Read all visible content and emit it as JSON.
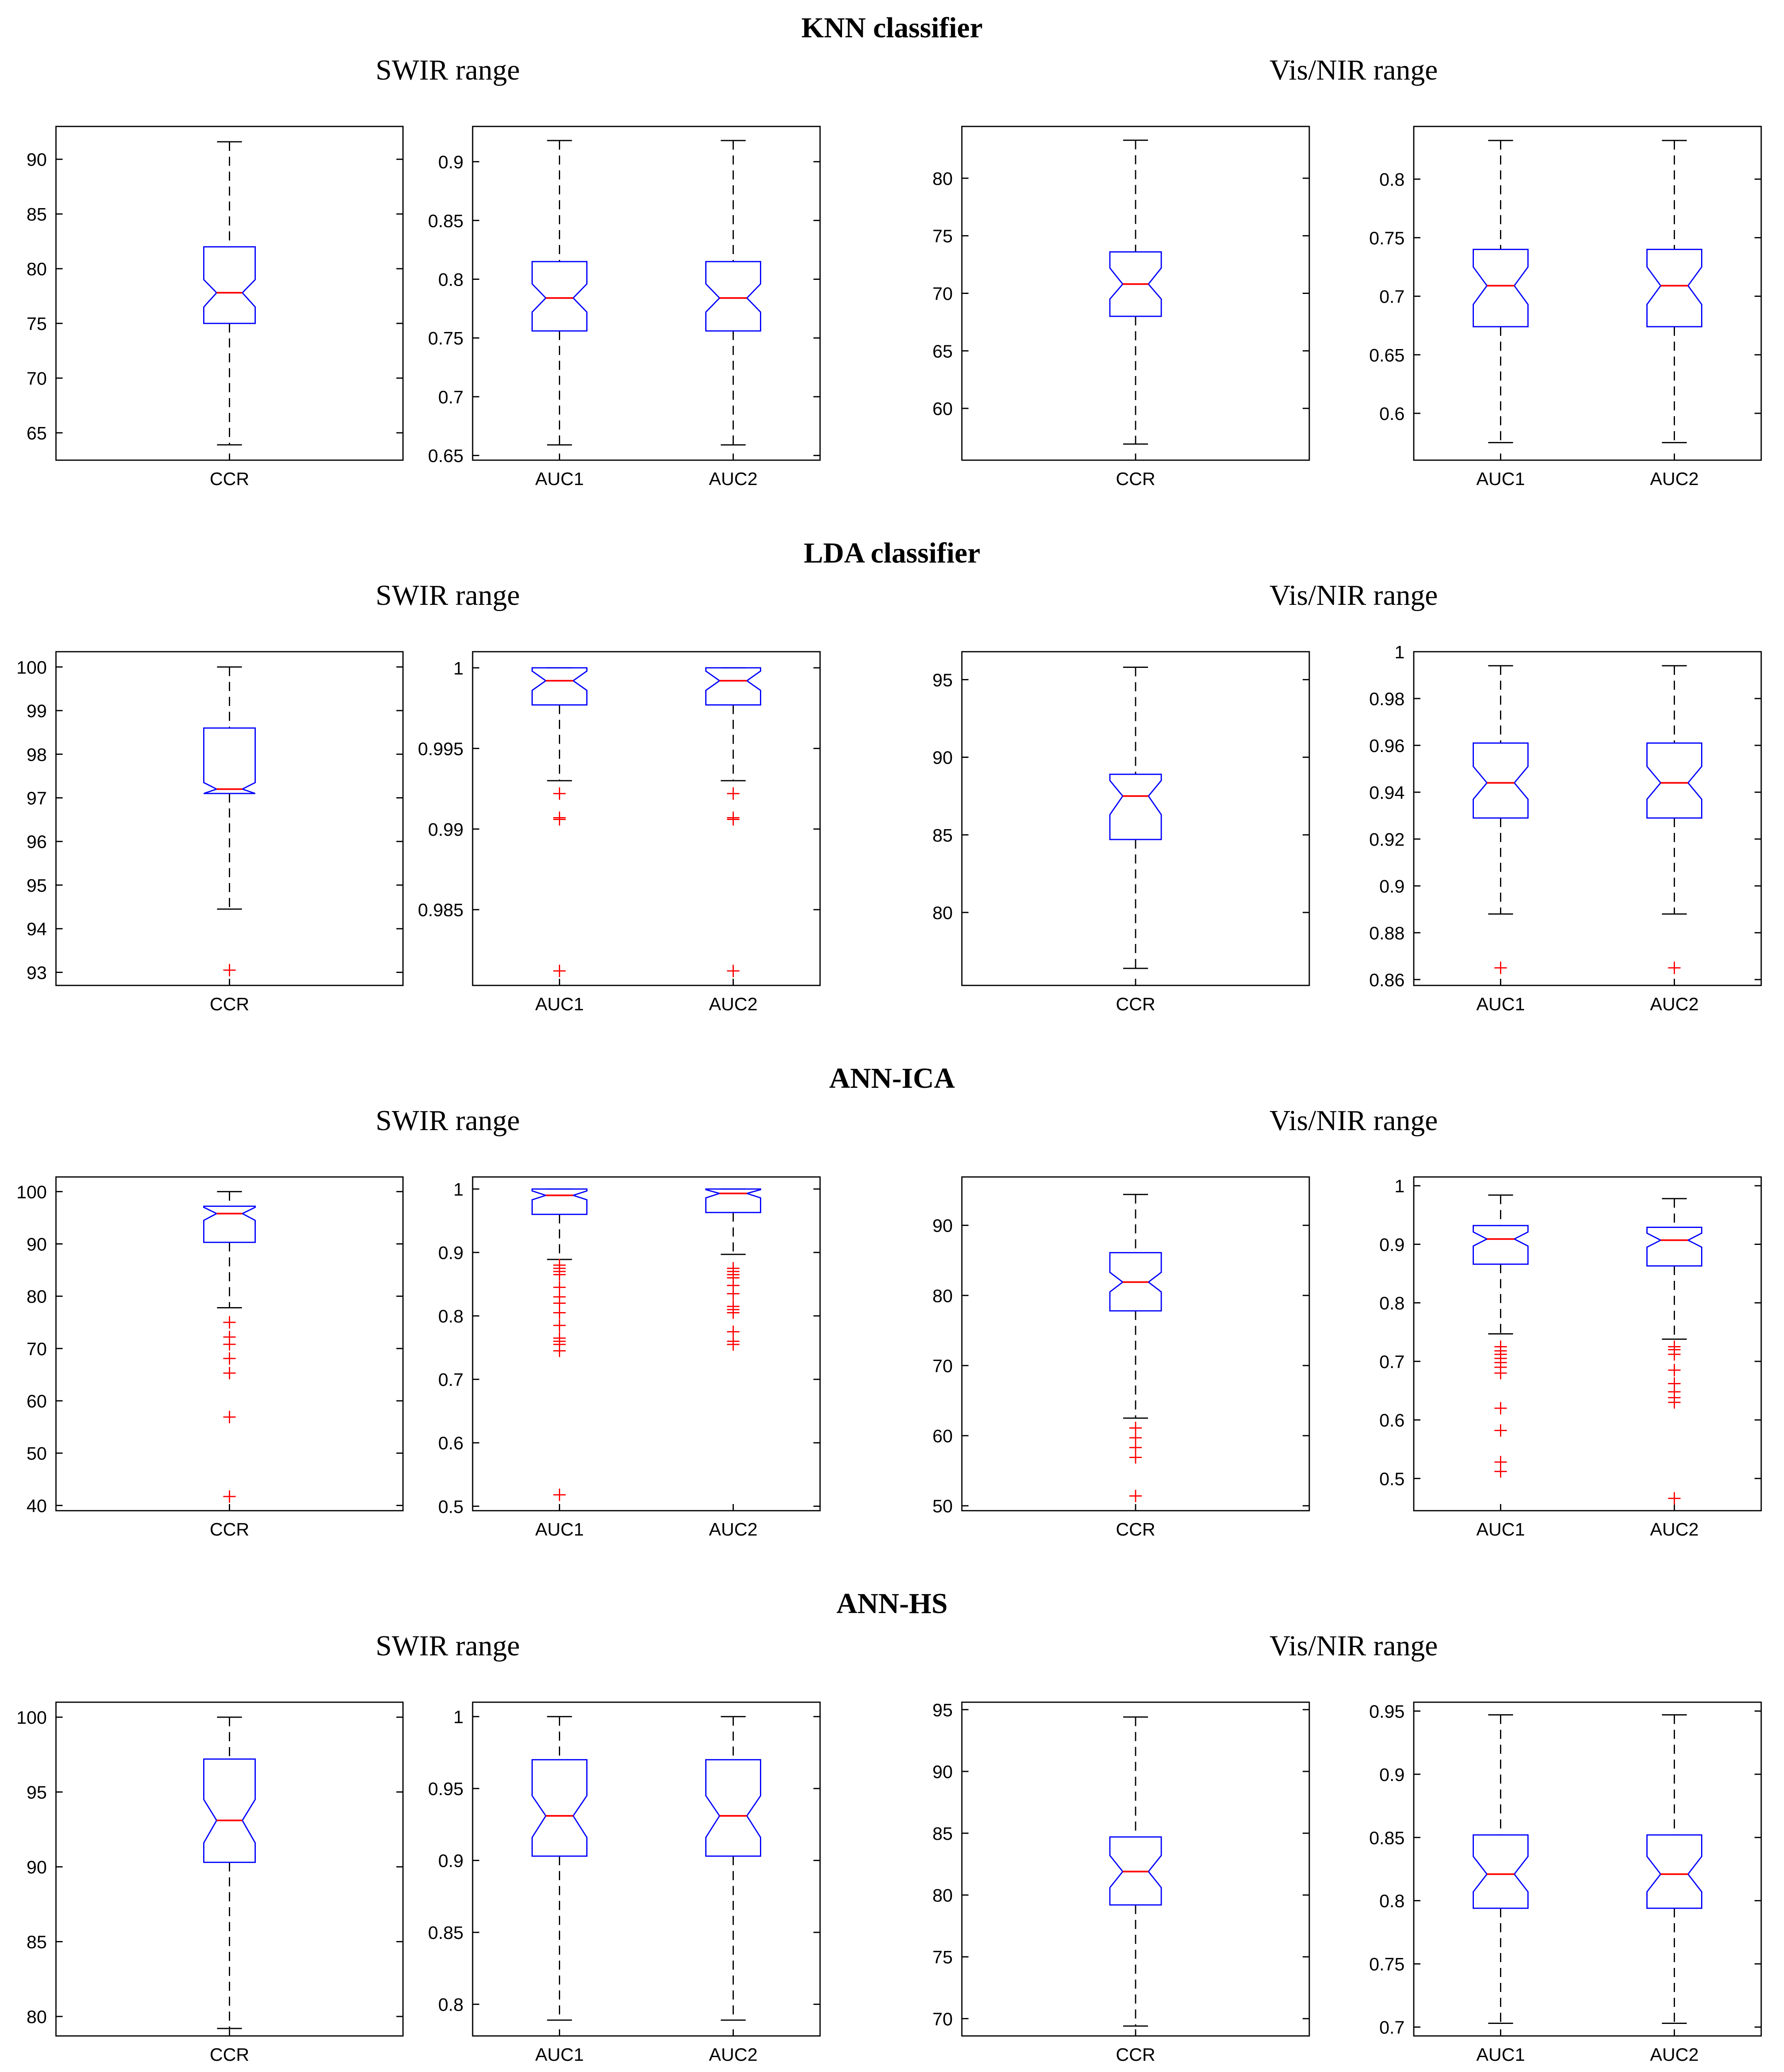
{
  "chart_data": [
    {
      "section": "KNN classifier",
      "subtitle": "SWIR range",
      "type": "boxplot",
      "ylim": [
        62.5,
        93.0
      ],
      "yticks": [
        65,
        70,
        75,
        80,
        85,
        90
      ],
      "categories": [
        "CCR"
      ],
      "boxes": [
        {
          "label": "CCR",
          "min": 63.9,
          "q1": 75.0,
          "median": 77.8,
          "q3": 82.0,
          "max": 91.6,
          "notch_lo": 76.5,
          "notch_hi": 79.0,
          "outliers": []
        }
      ]
    },
    {
      "section": "KNN classifier",
      "subtitle": "SWIR range",
      "type": "boxplot",
      "ylim": [
        0.646,
        0.93
      ],
      "yticks": [
        0.65,
        0.7,
        0.75,
        0.8,
        0.85,
        0.9
      ],
      "categories": [
        "AUC1",
        "AUC2"
      ],
      "boxes": [
        {
          "label": "AUC1",
          "min": 0.659,
          "q1": 0.756,
          "median": 0.784,
          "q3": 0.815,
          "max": 0.918,
          "notch_lo": 0.772,
          "notch_hi": 0.796,
          "outliers": []
        },
        {
          "label": "AUC2",
          "min": 0.659,
          "q1": 0.756,
          "median": 0.784,
          "q3": 0.815,
          "max": 0.918,
          "notch_lo": 0.772,
          "notch_hi": 0.796,
          "outliers": []
        }
      ]
    },
    {
      "section": "KNN classifier",
      "subtitle": "Vis/NIR range",
      "type": "boxplot",
      "ylim": [
        55.5,
        84.5
      ],
      "yticks": [
        60,
        65,
        70,
        75,
        80
      ],
      "categories": [
        "CCR"
      ],
      "boxes": [
        {
          "label": "CCR",
          "min": 56.9,
          "q1": 68.0,
          "median": 70.8,
          "q3": 73.6,
          "max": 83.3,
          "notch_lo": 69.5,
          "notch_hi": 72.2,
          "outliers": []
        }
      ]
    },
    {
      "section": "KNN classifier",
      "subtitle": "Vis/NIR range",
      "type": "boxplot",
      "ylim": [
        0.56,
        0.845
      ],
      "yticks": [
        0.6,
        0.65,
        0.7,
        0.75,
        0.8
      ],
      "categories": [
        "AUC1",
        "AUC2"
      ],
      "boxes": [
        {
          "label": "AUC1",
          "min": 0.575,
          "q1": 0.674,
          "median": 0.709,
          "q3": 0.74,
          "max": 0.833,
          "notch_lo": 0.693,
          "notch_hi": 0.725,
          "outliers": []
        },
        {
          "label": "AUC2",
          "min": 0.575,
          "q1": 0.674,
          "median": 0.709,
          "q3": 0.74,
          "max": 0.833,
          "notch_lo": 0.693,
          "notch_hi": 0.725,
          "outliers": []
        }
      ]
    },
    {
      "section": "LDA classifier",
      "subtitle": "SWIR range",
      "type": "boxplot",
      "ylim": [
        92.7,
        100.35
      ],
      "yticks": [
        93,
        94,
        95,
        96,
        97,
        98,
        99,
        100
      ],
      "categories": [
        "CCR"
      ],
      "boxes": [
        {
          "label": "CCR",
          "min": 94.45,
          "q1": 97.1,
          "median": 97.2,
          "q3": 98.6,
          "max": 100,
          "notch_lo": 97.05,
          "notch_hi": 97.35,
          "outliers": [
            93.05
          ]
        }
      ]
    },
    {
      "section": "LDA classifier",
      "subtitle": "SWIR range",
      "type": "boxplot",
      "ylim": [
        0.9803,
        1.001
      ],
      "yticks": [
        0.985,
        0.99,
        0.995,
        1
      ],
      "categories": [
        "AUC1",
        "AUC2"
      ],
      "boxes": [
        {
          "label": "AUC1",
          "min": 0.993,
          "q1": 0.9977,
          "median": 0.9992,
          "q3": 1.0,
          "max": 1.0,
          "notch_lo": 0.9986,
          "notch_hi": 0.9998,
          "outliers": [
            0.9922,
            0.9907,
            0.9906,
            0.9812
          ]
        },
        {
          "label": "AUC2",
          "min": 0.993,
          "q1": 0.9977,
          "median": 0.9992,
          "q3": 1.0,
          "max": 1.0,
          "notch_lo": 0.9986,
          "notch_hi": 0.9998,
          "outliers": [
            0.9922,
            0.9907,
            0.9906,
            0.9812
          ]
        }
      ]
    },
    {
      "section": "LDA classifier",
      "subtitle": "Vis/NIR range",
      "type": "boxplot",
      "ylim": [
        75.3,
        96.8
      ],
      "yticks": [
        80,
        85,
        90,
        95
      ],
      "categories": [
        "CCR"
      ],
      "boxes": [
        {
          "label": "CCR",
          "min": 76.4,
          "q1": 84.7,
          "median": 87.5,
          "q3": 88.9,
          "max": 95.8,
          "notch_lo": 86.3,
          "notch_hi": 88.5,
          "outliers": []
        }
      ]
    },
    {
      "section": "LDA classifier",
      "subtitle": "Vis/NIR range",
      "type": "boxplot",
      "ylim": [
        0.8575,
        1.0
      ],
      "yticks": [
        0.86,
        0.88,
        0.9,
        0.92,
        0.94,
        0.96,
        0.98,
        1
      ],
      "categories": [
        "AUC1",
        "AUC2"
      ],
      "boxes": [
        {
          "label": "AUC1",
          "min": 0.888,
          "q1": 0.929,
          "median": 0.944,
          "q3": 0.961,
          "max": 0.994,
          "notch_lo": 0.937,
          "notch_hi": 0.951,
          "outliers": [
            0.865
          ]
        },
        {
          "label": "AUC2",
          "min": 0.888,
          "q1": 0.929,
          "median": 0.944,
          "q3": 0.961,
          "max": 0.994,
          "notch_lo": 0.937,
          "notch_hi": 0.951,
          "outliers": [
            0.865
          ]
        }
      ]
    },
    {
      "section": "ANN-ICA",
      "subtitle": "SWIR range",
      "type": "boxplot",
      "ylim": [
        39.0,
        102.8
      ],
      "yticks": [
        40,
        50,
        60,
        70,
        80,
        90,
        100
      ],
      "categories": [
        "CCR"
      ],
      "boxes": [
        {
          "label": "CCR",
          "min": 77.8,
          "q1": 90.3,
          "median": 95.8,
          "q3": 97.2,
          "max": 100,
          "notch_lo": 94.5,
          "notch_hi": 97.0,
          "outliers": [
            75.0,
            72.2,
            70.8,
            68.1,
            65.3,
            56.9,
            41.7
          ]
        }
      ]
    },
    {
      "section": "ANN-ICA",
      "subtitle": "SWIR range",
      "type": "boxplot",
      "ylim": [
        0.493,
        1.019
      ],
      "yticks": [
        0.5,
        0.6,
        0.7,
        0.8,
        0.9,
        1
      ],
      "categories": [
        "AUC1",
        "AUC2"
      ],
      "boxes": [
        {
          "label": "AUC1",
          "min": 0.889,
          "q1": 0.96,
          "median": 0.99,
          "q3": 1.0,
          "max": 1.0,
          "notch_lo": 0.983,
          "notch_hi": 0.997,
          "outliers": [
            0.88,
            0.875,
            0.87,
            0.865,
            0.845,
            0.83,
            0.82,
            0.805,
            0.785,
            0.765,
            0.76,
            0.755,
            0.745,
            0.518
          ]
        },
        {
          "label": "AUC2",
          "min": 0.897,
          "q1": 0.963,
          "median": 0.993,
          "q3": 1.0,
          "max": 1.0,
          "notch_lo": 0.986,
          "notch_hi": 0.999,
          "outliers": [
            0.875,
            0.87,
            0.865,
            0.86,
            0.848,
            0.835,
            0.815,
            0.81,
            0.805,
            0.775,
            0.76,
            0.755
          ]
        }
      ]
    },
    {
      "section": "ANN-ICA",
      "subtitle": "Vis/NIR range",
      "type": "boxplot",
      "ylim": [
        49.3,
        96.9
      ],
      "yticks": [
        50,
        60,
        70,
        80,
        90
      ],
      "categories": [
        "CCR"
      ],
      "boxes": [
        {
          "label": "CCR",
          "min": 62.5,
          "q1": 77.8,
          "median": 81.9,
          "q3": 86.1,
          "max": 94.4,
          "notch_lo": 80.5,
          "notch_hi": 83.3,
          "outliers": [
            61.1,
            59.7,
            58.3,
            56.9,
            51.4
          ]
        }
      ]
    },
    {
      "section": "ANN-ICA",
      "subtitle": "Vis/NIR range",
      "type": "boxplot",
      "ylim": [
        0.445,
        1.015
      ],
      "yticks": [
        0.5,
        0.6,
        0.7,
        0.8,
        0.9,
        1
      ],
      "categories": [
        "AUC1",
        "AUC2"
      ],
      "boxes": [
        {
          "label": "AUC1",
          "min": 0.747,
          "q1": 0.866,
          "median": 0.909,
          "q3": 0.932,
          "max": 0.984,
          "notch_lo": 0.897,
          "notch_hi": 0.921,
          "outliers": [
            0.725,
            0.718,
            0.712,
            0.705,
            0.698,
            0.69,
            0.68,
            0.62,
            0.582,
            0.528,
            0.512
          ]
        },
        {
          "label": "AUC2",
          "min": 0.738,
          "q1": 0.863,
          "median": 0.907,
          "q3": 0.929,
          "max": 0.978,
          "notch_lo": 0.895,
          "notch_hi": 0.919,
          "outliers": [
            0.725,
            0.72,
            0.712,
            0.685,
            0.662,
            0.648,
            0.638,
            0.63,
            0.466
          ]
        }
      ]
    },
    {
      "section": "ANN-HS",
      "subtitle": "SWIR range",
      "type": "boxplot",
      "ylim": [
        78.7,
        101.0
      ],
      "yticks": [
        80,
        85,
        90,
        95,
        100
      ],
      "categories": [
        "CCR"
      ],
      "boxes": [
        {
          "label": "CCR",
          "min": 79.2,
          "q1": 90.3,
          "median": 93.1,
          "q3": 97.2,
          "max": 100,
          "notch_lo": 91.6,
          "notch_hi": 94.5,
          "outliers": []
        }
      ]
    },
    {
      "section": "ANN-HS",
      "subtitle": "SWIR range",
      "type": "boxplot",
      "ylim": [
        0.778,
        1.01
      ],
      "yticks": [
        0.8,
        0.85,
        0.9,
        0.95,
        1
      ],
      "categories": [
        "AUC1",
        "AUC2"
      ],
      "boxes": [
        {
          "label": "AUC1",
          "min": 0.789,
          "q1": 0.903,
          "median": 0.931,
          "q3": 0.97,
          "max": 1.0,
          "notch_lo": 0.916,
          "notch_hi": 0.945,
          "outliers": []
        },
        {
          "label": "AUC2",
          "min": 0.789,
          "q1": 0.903,
          "median": 0.931,
          "q3": 0.97,
          "max": 1.0,
          "notch_lo": 0.916,
          "notch_hi": 0.945,
          "outliers": []
        }
      ]
    },
    {
      "section": "ANN-HS",
      "subtitle": "Vis/NIR range",
      "type": "boxplot",
      "ylim": [
        68.6,
        95.6
      ],
      "yticks": [
        70,
        75,
        80,
        85,
        90,
        95
      ],
      "categories": [
        "CCR"
      ],
      "boxes": [
        {
          "label": "CCR",
          "min": 69.4,
          "q1": 79.2,
          "median": 81.9,
          "q3": 84.7,
          "max": 94.4,
          "notch_lo": 80.6,
          "notch_hi": 83.2,
          "outliers": []
        }
      ]
    },
    {
      "section": "ANN-HS",
      "subtitle": "Vis/NIR range",
      "type": "boxplot",
      "ylim": [
        0.693,
        0.957
      ],
      "yticks": [
        0.7,
        0.75,
        0.8,
        0.85,
        0.9,
        0.95
      ],
      "categories": [
        "AUC1",
        "AUC2"
      ],
      "boxes": [
        {
          "label": "AUC1",
          "min": 0.703,
          "q1": 0.794,
          "median": 0.821,
          "q3": 0.852,
          "max": 0.947,
          "notch_lo": 0.807,
          "notch_hi": 0.835,
          "outliers": []
        },
        {
          "label": "AUC2",
          "min": 0.703,
          "q1": 0.794,
          "median": 0.821,
          "q3": 0.852,
          "max": 0.947,
          "notch_lo": 0.807,
          "notch_hi": 0.835,
          "outliers": []
        }
      ]
    }
  ],
  "sections": [
    {
      "title": "KNN classifier",
      "left_subtitle": "SWIR range",
      "right_subtitle": "Vis/NIR range"
    },
    {
      "title": "LDA classifier",
      "left_subtitle": "SWIR range",
      "right_subtitle": "Vis/NIR range"
    },
    {
      "title": "ANN-ICA",
      "left_subtitle": "SWIR range",
      "right_subtitle": "Vis/NIR range"
    },
    {
      "title": "ANN-HS",
      "left_subtitle": "SWIR range",
      "right_subtitle": "Vis/NIR range"
    }
  ],
  "colors": {
    "box": "#0000ff",
    "median": "#ff0000",
    "outlier": "#ff0000",
    "whisker": "#000000",
    "axis": "#000000"
  }
}
